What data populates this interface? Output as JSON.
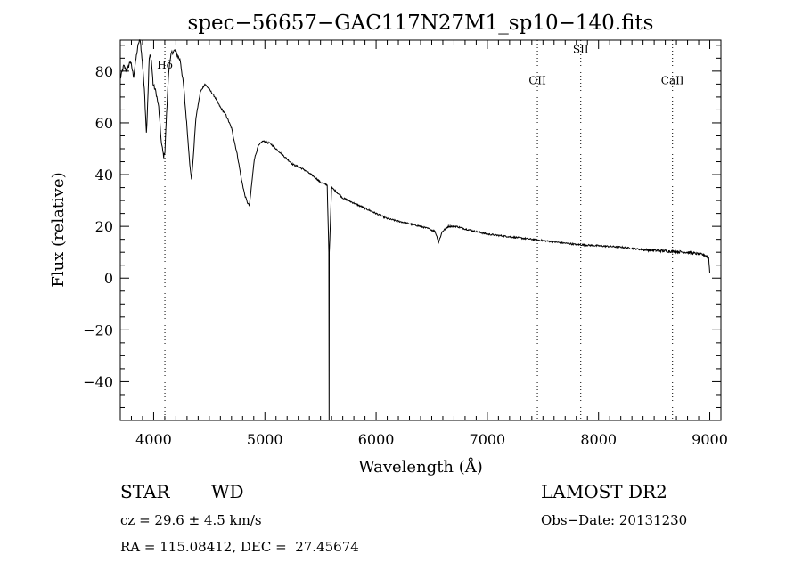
{
  "chart_data": {
    "type": "line",
    "title": "spec−56657−GAC117N27M1_sp10−140.fits",
    "xlabel": "Wavelength (Å)",
    "ylabel": "Flux (relative)",
    "xlim": [
      3700,
      9100
    ],
    "ylim": [
      -55,
      92
    ],
    "x_ticks": [
      4000,
      5000,
      6000,
      7000,
      8000,
      9000
    ],
    "x_tick_labels": [
      "4000",
      "5000",
      "6000",
      "7000",
      "8000",
      "9000"
    ],
    "y_ticks": [
      80,
      60,
      40,
      20,
      0,
      -20,
      -40
    ],
    "y_tick_labels": [
      "80",
      "60",
      "40",
      "20",
      "0",
      "−20",
      "−40"
    ],
    "line_markers": [
      {
        "label": "Hδ",
        "x": 4101,
        "label_y": 81
      },
      {
        "label": "OII",
        "x": 7450,
        "label_y": 75
      },
      {
        "label": "SII",
        "x": 7840,
        "label_y": 87
      },
      {
        "label": "CaII",
        "x": 8665,
        "label_y": 75
      }
    ],
    "series": [
      {
        "x": [
          3700,
          3730,
          3760,
          3790,
          3820,
          3845,
          3865,
          3880,
          3890,
          3905,
          3920,
          3935,
          3950,
          3960,
          3970,
          3980,
          3995,
          4020,
          4045,
          4070,
          4090,
          4101,
          4112,
          4135,
          4160,
          4190,
          4215,
          4240,
          4270,
          4300,
          4325,
          4340,
          4355,
          4380,
          4420,
          4460,
          4500,
          4550,
          4600,
          4650,
          4700,
          4750,
          4790,
          4820,
          4845,
          4861,
          4878,
          4905,
          4940,
          4980,
          5050,
          5150,
          5250,
          5350,
          5450,
          5500,
          5560,
          5575,
          5577,
          5579,
          5600,
          5650,
          5700,
          5800,
          5900,
          6000,
          6100,
          6200,
          6300,
          6400,
          6480,
          6530,
          6563,
          6595,
          6650,
          6720,
          6800,
          7000,
          7200,
          7400,
          7600,
          7800,
          8000,
          8200,
          8400,
          8600,
          8800,
          8950,
          8990,
          9000
        ],
        "y": [
          77,
          82,
          80,
          84,
          78,
          86,
          91,
          92,
          87,
          80,
          70,
          56,
          72,
          85,
          86,
          84,
          75,
          72,
          66,
          52,
          47,
          49,
          60,
          80,
          87,
          88,
          86,
          84,
          74,
          58,
          44,
          38,
          46,
          62,
          72,
          75,
          73,
          70,
          66,
          63,
          58,
          48,
          38,
          32,
          29,
          28,
          35,
          46,
          51,
          53,
          52,
          48,
          44,
          42,
          39,
          37,
          36,
          10,
          -55,
          10,
          35,
          33,
          31,
          29,
          27,
          25,
          23,
          22,
          21,
          20,
          19,
          18,
          14,
          18,
          20,
          20,
          19,
          17,
          16,
          15,
          14,
          13,
          12.5,
          12,
          11,
          10.5,
          10,
          9,
          8,
          2
        ]
      }
    ]
  },
  "info": {
    "class": "STAR",
    "subclass": "WD",
    "survey": "LAMOST DR2",
    "cz": "cz = 29.6 ± 4.5 km/s",
    "obs_date": "Obs−Date: 20131230",
    "radec": "RA = 115.08412, DEC =  27.45674"
  }
}
